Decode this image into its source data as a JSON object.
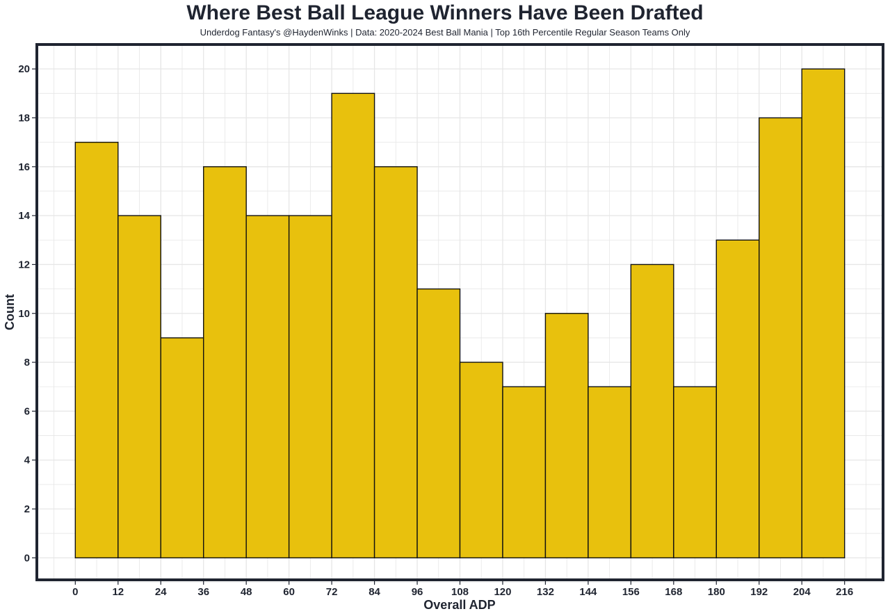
{
  "chart_data": {
    "type": "bar",
    "title": "Where Best Ball League Winners Have Been Drafted",
    "subtitle": "Underdog Fantasy's @HaydenWinks | Data: 2020-2024 Best Ball Mania | Top 16th Percentile Regular Season Teams Only",
    "xlabel": "Overall ADP",
    "ylabel": "Count",
    "bin_width": 12,
    "bins": [
      {
        "start": 0,
        "end": 12,
        "value": 17
      },
      {
        "start": 12,
        "end": 24,
        "value": 14
      },
      {
        "start": 24,
        "end": 36,
        "value": 9
      },
      {
        "start": 36,
        "end": 48,
        "value": 16
      },
      {
        "start": 48,
        "end": 60,
        "value": 14
      },
      {
        "start": 60,
        "end": 72,
        "value": 14
      },
      {
        "start": 72,
        "end": 84,
        "value": 19
      },
      {
        "start": 84,
        "end": 96,
        "value": 16
      },
      {
        "start": 96,
        "end": 108,
        "value": 11
      },
      {
        "start": 108,
        "end": 120,
        "value": 8
      },
      {
        "start": 120,
        "end": 132,
        "value": 7
      },
      {
        "start": 132,
        "end": 144,
        "value": 10
      },
      {
        "start": 144,
        "end": 156,
        "value": 7
      },
      {
        "start": 156,
        "end": 168,
        "value": 12
      },
      {
        "start": 168,
        "end": 180,
        "value": 7
      },
      {
        "start": 180,
        "end": 192,
        "value": 13
      },
      {
        "start": 192,
        "end": 204,
        "value": 18
      },
      {
        "start": 204,
        "end": 216,
        "value": 20
      }
    ],
    "xticks": [
      0,
      12,
      24,
      36,
      48,
      60,
      72,
      84,
      96,
      108,
      120,
      132,
      144,
      156,
      168,
      180,
      192,
      204,
      216
    ],
    "yticks": [
      0,
      2,
      4,
      6,
      8,
      10,
      12,
      14,
      16,
      18,
      20
    ],
    "xlim": [
      -10.8,
      226.8
    ],
    "ylim": [
      -0.9,
      21.0
    ],
    "grid": true,
    "colors": {
      "bar_fill": "#E8C10D",
      "bar_stroke": "#111111",
      "frame": "#1f2430",
      "grid": "#e6e6e6",
      "text": "#1f2430"
    }
  }
}
